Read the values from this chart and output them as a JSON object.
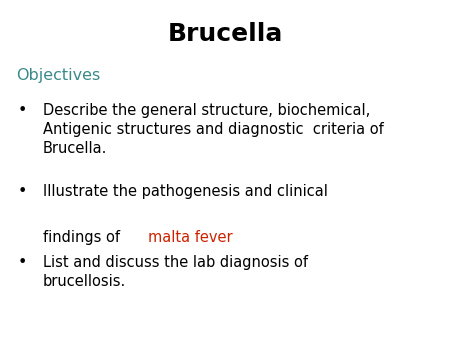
{
  "title": "Brucella",
  "title_color": "#000000",
  "title_fontsize": 18,
  "title_fontweight": "bold",
  "background_color": "#ffffff",
  "objectives_label": "Objectives",
  "objectives_color": "#3a8a8a",
  "objectives_fontsize": 11.5,
  "bullet_color": "#000000",
  "bullet_fontsize": 10.5,
  "bullet1": "Describe the general structure, biochemical,\nAntigenic structures and diagnostic  criteria of\nBrucella.",
  "bullet1_color": "#000000",
  "bullet2_part1": "Illustrate the pathogenesis and clinical\nfindings of ",
  "bullet2_part1_color": "#000000",
  "bullet2_part2": "malta fever",
  "bullet2_part2_color": "#cc2200",
  "bullet3": "List and discuss the lab diagnosis of\nbrucellosis.",
  "bullet3_color": "#000000"
}
